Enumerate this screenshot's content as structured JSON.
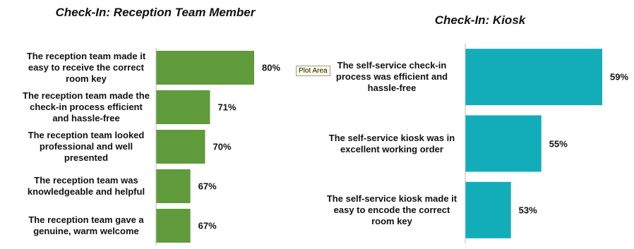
{
  "chart_data": [
    {
      "type": "bar",
      "orientation": "horizontal",
      "title": "Check-In:  Reception Team Member",
      "categories": [
        "The reception team made it easy to receive the correct room key",
        "The reception team made the check-in process efficient and hassle-free",
        "The reception team looked professional and well presented",
        "The reception team was knowledgeable and helpful",
        "The reception team gave a genuine, warm welcome"
      ],
      "values": [
        80,
        71,
        70,
        67,
        67
      ],
      "value_labels": [
        "80%",
        "71%",
        "70%",
        "67%",
        "67%"
      ],
      "color": "#5f9b3a",
      "xlim": [
        60,
        80
      ]
    },
    {
      "type": "bar",
      "orientation": "horizontal",
      "title": "Check-In: Kiosk",
      "categories": [
        "The self-service check-in process was efficient and hassle-free",
        "The self-service kiosk was in excellent working order",
        "The self-service kiosk made it easy to encode the correct room key"
      ],
      "values": [
        59,
        55,
        53
      ],
      "value_labels": [
        "59%",
        "55%",
        "53%"
      ],
      "color": "#12adb9",
      "xlim": [
        50,
        59
      ]
    }
  ],
  "tooltip": "Plot Area"
}
